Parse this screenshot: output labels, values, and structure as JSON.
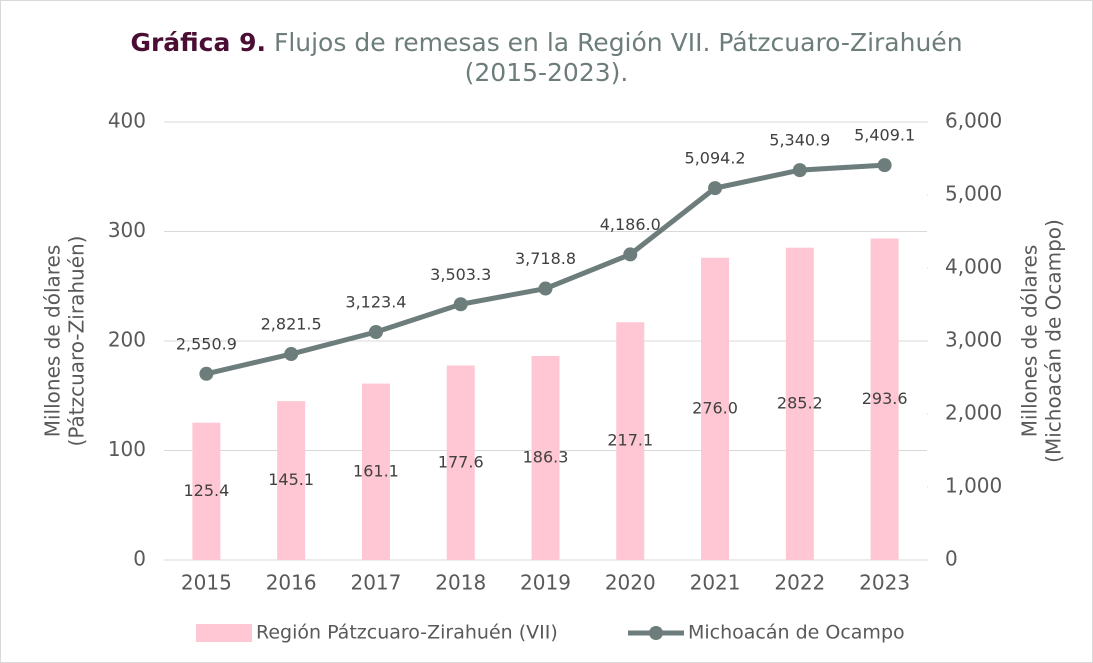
{
  "chart_data": {
    "type": "bar-line",
    "title_label": "Gráfica 9.",
    "title": "Flujos de remesas en la Región VII. Pátzcuaro-Zirahuén (2015-2023).",
    "ylabel": [
      "Millones de dólares",
      "(Pátzcuaro-Zirahuén)"
    ],
    "y2label": [
      "Millones de dólares",
      "(Michoacán de Ocampo)"
    ],
    "categories": [
      "2015",
      "2016",
      "2017",
      "2018",
      "2019",
      "2020",
      "2021",
      "2022",
      "2023"
    ],
    "series": [
      {
        "name": "Región Pátzcuaro-Zirahuén (VII)",
        "type": "bar",
        "color": "#ffc7d3",
        "axis": "y",
        "values": [
          125.4,
          145.1,
          161.1,
          177.6,
          186.3,
          217.1,
          276.0,
          285.2,
          293.6
        ],
        "value_labels": [
          "125.4",
          "145.1",
          "161.1",
          "177.6",
          "186.3",
          "217.1",
          "276.0",
          "285.2",
          "293.6"
        ]
      },
      {
        "name": "Michoacán de Ocampo",
        "type": "line",
        "color": "#6c7d7b",
        "axis": "y2",
        "values": [
          2550.9,
          2821.5,
          3123.4,
          3503.3,
          3718.8,
          4186.0,
          5094.2,
          5340.9,
          5409.1
        ],
        "value_labels": [
          "2,550.9",
          "2,821.5",
          "3,123.4",
          "3,503.3",
          "3,718.8",
          "4,186.0",
          "5,094.2",
          "5,340.9",
          "5,409.1"
        ]
      }
    ],
    "ylim": [
      0,
      400
    ],
    "yticks": [
      0,
      100,
      200,
      300,
      400
    ],
    "y2lim": [
      0,
      6000
    ],
    "y2ticks": [
      0,
      {
        "value": 1000,
        "label": "1,000"
      },
      {
        "value": 2000,
        "label": "2,000"
      },
      {
        "value": 3000,
        "label": "3,000"
      },
      {
        "value": 4000,
        "label": "4,000"
      },
      {
        "value": 5000,
        "label": "5,000"
      },
      {
        "value": 6000,
        "label": "6,000"
      }
    ],
    "grid": true,
    "legend": "bottom"
  }
}
